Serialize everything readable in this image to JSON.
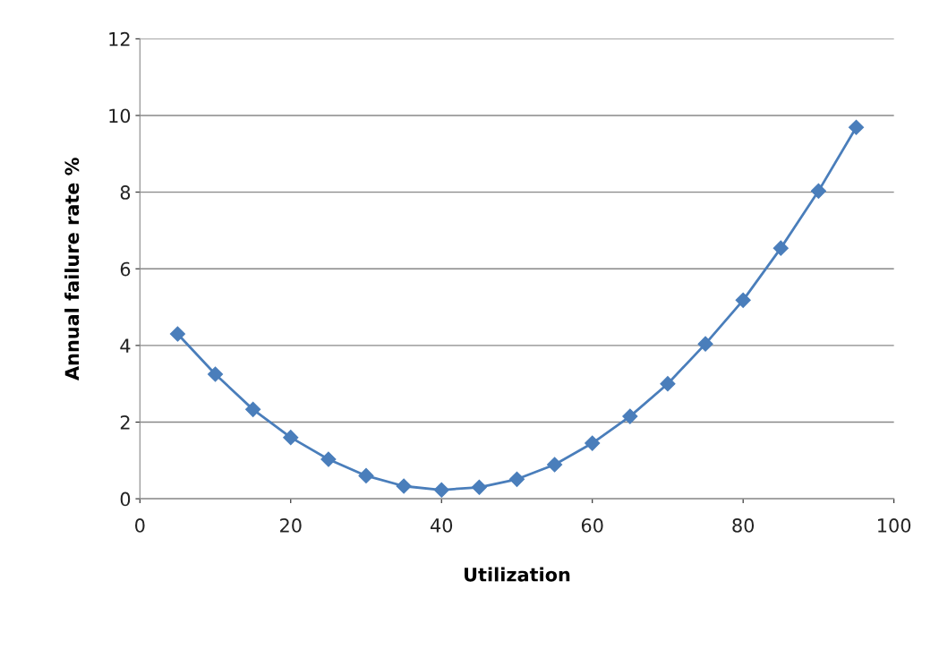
{
  "chart_data": {
    "type": "line",
    "xlabel": "Utilization",
    "ylabel": "Annual failure rate %",
    "x": [
      5,
      10,
      15,
      20,
      25,
      30,
      35,
      40,
      45,
      50,
      55,
      60,
      65,
      70,
      75,
      80,
      85,
      90,
      95
    ],
    "series": [
      {
        "color": "#4a7ebb",
        "values": [
          4.3,
          3.25,
          2.33,
          1.6,
          1.03,
          0.6,
          0.33,
          0.23,
          0.3,
          0.51,
          0.89,
          1.45,
          2.15,
          3.0,
          4.04,
          5.18,
          6.54,
          8.03,
          9.69
        ]
      }
    ],
    "xlim": [
      0,
      100
    ],
    "xticks": [
      0,
      20,
      40,
      60,
      80,
      100
    ],
    "ylim": [
      0,
      12
    ],
    "yticks": [
      0,
      2,
      4,
      6,
      8,
      10,
      12
    ],
    "grid": "y",
    "marker": "diamond",
    "line_style": "solid"
  }
}
